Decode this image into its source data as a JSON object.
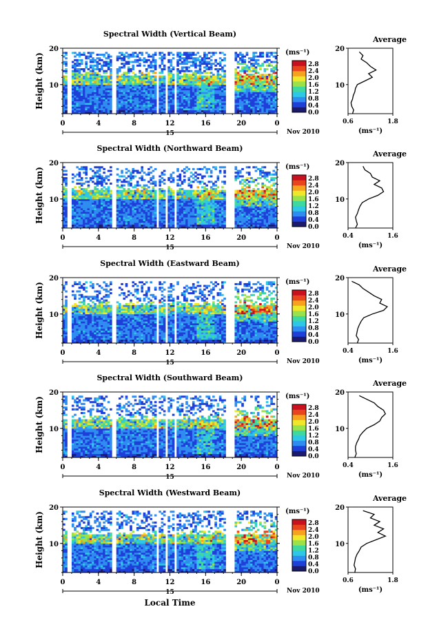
{
  "figure": {
    "xlabel": "Local Time",
    "date_label": "Nov 2010",
    "day_label": "15",
    "colorbar_label": "(ms⁻¹)",
    "colorbar_ticks": [
      "2.8",
      "2.4",
      "2.0",
      "1.6",
      "1.2",
      "0.8",
      "0.4",
      "0.0"
    ],
    "colorbar_colors": [
      "#1a1a6e",
      "#1f3fd9",
      "#2f8cf0",
      "#2ec8e6",
      "#3fd9a0",
      "#9be24a",
      "#f0e62a",
      "#f6a21e",
      "#e8451e",
      "#c9101e"
    ],
    "profile_title": "Average",
    "profile_xlabel": "(ms⁻¹)"
  },
  "chart_data": [
    {
      "type": "heatmap",
      "title": "Spectral Width (Vertical Beam)",
      "xlabel": "Local Time",
      "ylabel": "Height (km)",
      "xlim": [
        0,
        24
      ],
      "ylim": [
        2,
        20
      ],
      "xticks": [
        "0",
        "4",
        "8",
        "12",
        "16",
        "20",
        "0"
      ],
      "yticks": [
        "20",
        "10"
      ],
      "colorbar_range": [
        0.0,
        3.0
      ],
      "profile": {
        "title": "Average",
        "xlim": [
          0.6,
          1.8
        ],
        "xticks": [
          "0.6",
          "1.8"
        ],
        "heights": [
          2,
          3,
          4,
          5,
          6,
          7,
          8,
          9,
          10,
          11,
          12,
          13,
          14,
          15,
          16,
          17,
          18,
          19
        ],
        "values": [
          0.72,
          0.75,
          0.7,
          0.68,
          0.72,
          0.74,
          0.78,
          0.8,
          0.85,
          1.05,
          1.25,
          1.15,
          1.35,
          1.2,
          1.1,
          0.95,
          1.0,
          0.9
        ]
      }
    },
    {
      "type": "heatmap",
      "title": "Spectral Width (Northward Beam)",
      "xlabel": "Local Time",
      "ylabel": "Height (km)",
      "xlim": [
        0,
        24
      ],
      "ylim": [
        2,
        20
      ],
      "xticks": [
        "0",
        "4",
        "8",
        "12",
        "16",
        "20",
        "0"
      ],
      "yticks": [
        "20",
        "10"
      ],
      "colorbar_range": [
        0.0,
        3.0
      ],
      "profile": {
        "title": "Average",
        "xlim": [
          0.4,
          1.6
        ],
        "xticks": [
          "0.4",
          "1.6"
        ],
        "heights": [
          2,
          3,
          4,
          5,
          6,
          7,
          8,
          9,
          10,
          11,
          12,
          13,
          14,
          15,
          16,
          17,
          18,
          19
        ],
        "values": [
          0.6,
          0.65,
          0.62,
          0.6,
          0.65,
          0.68,
          0.72,
          0.78,
          0.95,
          1.2,
          1.35,
          1.3,
          1.1,
          1.25,
          1.05,
          1.0,
          0.85,
          0.8
        ]
      }
    },
    {
      "type": "heatmap",
      "title": "Spectral Width (Eastward Beam)",
      "xlabel": "Local Time",
      "ylabel": "Height (km)",
      "xlim": [
        0,
        24
      ],
      "ylim": [
        2,
        20
      ],
      "xticks": [
        "0",
        "4",
        "8",
        "12",
        "16",
        "20",
        "0"
      ],
      "yticks": [
        "20",
        "10"
      ],
      "colorbar_range": [
        0.0,
        3.0
      ],
      "profile": {
        "title": "Average",
        "xlim": [
          0.4,
          1.6
        ],
        "xticks": [
          "0.4",
          "1.6"
        ],
        "heights": [
          2,
          3,
          4,
          5,
          6,
          7,
          8,
          9,
          10,
          11,
          12,
          13,
          14,
          15,
          16,
          17,
          18,
          19
        ],
        "values": [
          0.65,
          0.68,
          0.62,
          0.64,
          0.66,
          0.7,
          0.75,
          0.82,
          1.05,
          1.35,
          1.45,
          1.25,
          1.3,
          1.1,
          0.95,
          0.8,
          0.7,
          0.5
        ]
      }
    },
    {
      "type": "heatmap",
      "title": "Spectral Width (Southward Beam)",
      "xlabel": "Local Time",
      "ylabel": "Height (km)",
      "xlim": [
        0,
        24
      ],
      "ylim": [
        2,
        20
      ],
      "xticks": [
        "0",
        "4",
        "8",
        "12",
        "16",
        "20",
        "0"
      ],
      "yticks": [
        "20",
        "10"
      ],
      "colorbar_range": [
        0.0,
        3.0
      ],
      "profile": {
        "title": "Average",
        "xlim": [
          0.4,
          1.6
        ],
        "xticks": [
          "0.4",
          "1.6"
        ],
        "heights": [
          2,
          3,
          4,
          5,
          6,
          7,
          8,
          9,
          10,
          11,
          12,
          13,
          14,
          15,
          16,
          17,
          18,
          19
        ],
        "values": [
          0.58,
          0.62,
          0.6,
          0.6,
          0.63,
          0.68,
          0.72,
          0.8,
          0.9,
          1.1,
          1.25,
          1.3,
          1.4,
          1.35,
          1.2,
          1.1,
          0.9,
          0.7
        ]
      }
    },
    {
      "type": "heatmap",
      "title": "Spectral Width (Westward Beam)",
      "xlabel": "Local Time",
      "ylabel": "Height (km)",
      "xlim": [
        0,
        24
      ],
      "ylim": [
        2,
        20
      ],
      "xticks": [
        "0",
        "4",
        "8",
        "12",
        "16",
        "20",
        "0"
      ],
      "yticks": [
        "20",
        "10"
      ],
      "colorbar_range": [
        0.0,
        3.0
      ],
      "profile": {
        "title": "Average",
        "xlim": [
          0.6,
          1.8
        ],
        "xticks": [
          "0.6",
          "1.8"
        ],
        "heights": [
          2,
          3,
          4,
          5,
          6,
          7,
          8,
          9,
          10,
          11,
          12,
          13,
          14,
          15,
          16,
          17,
          18,
          19
        ],
        "values": [
          0.78,
          0.8,
          0.76,
          0.78,
          0.8,
          0.84,
          0.9,
          0.95,
          1.1,
          1.35,
          1.6,
          1.4,
          1.55,
          1.3,
          1.45,
          1.2,
          1.3,
          1.0
        ]
      }
    }
  ]
}
